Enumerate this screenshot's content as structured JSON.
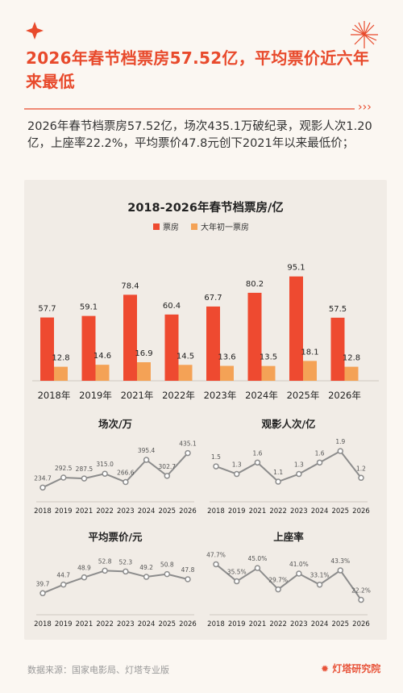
{
  "title": "2026年春节档票房57.52亿，平均票价近六年来最低",
  "summary": "2026年春节档票房57.52亿，场次435.1万破纪录，观影人次1.20亿，上座率22.2%，平均票价47.8元创下2021年以来最低价；",
  "footer": "数据来源：国家电影局、灯塔专业版",
  "brand": "灯塔研究院",
  "colors": {
    "accent": "#e84a2c",
    "bar_primary": "#ee4a30",
    "bar_secondary": "#f4a256",
    "line": "#8c8c8c"
  },
  "chart_data": [
    {
      "type": "bar",
      "title": "2018-2026年春节档票房/亿",
      "categories": [
        "2018年",
        "2019年",
        "2021年",
        "2022年",
        "2023年",
        "2024年",
        "2025年",
        "2026年"
      ],
      "series": [
        {
          "name": "票房",
          "values": [
            57.7,
            59.1,
            78.4,
            60.4,
            67.7,
            80.2,
            95.1,
            57.5
          ],
          "labels": [
            "57.7",
            "59.1",
            "78.4",
            "60.4",
            "67.7",
            "80.2",
            "95.1",
            "57.5"
          ]
        },
        {
          "name": "大年初一票房",
          "values": [
            12.8,
            14.6,
            16.9,
            14.5,
            13.6,
            13.5,
            18.1,
            12.8
          ],
          "labels": [
            "12.8",
            "14.6",
            "16.9",
            "14.5",
            "13.6",
            "13.5",
            "18.1",
            "12.8"
          ]
        }
      ]
    },
    {
      "type": "line",
      "title": "场次/万",
      "categories": [
        "2018",
        "2019",
        "2021",
        "2022",
        "2023",
        "2024",
        "2025",
        "2026"
      ],
      "values": [
        234.7,
        292.5,
        287.5,
        315.0,
        266.6,
        395.4,
        302.7,
        435.1
      ],
      "labels": [
        "234.7",
        "292.5",
        "287.5",
        "315.0",
        "266.6",
        "395.4",
        "302.7",
        "435.1"
      ]
    },
    {
      "type": "line",
      "title": "观影人次/亿",
      "categories": [
        "2018",
        "2019",
        "2021",
        "2022",
        "2023",
        "2024",
        "2025",
        "2026"
      ],
      "values": [
        1.5,
        1.3,
        1.6,
        1.1,
        1.3,
        1.6,
        1.9,
        1.2
      ],
      "labels": [
        "1.5",
        "1.3",
        "1.6",
        "1.1",
        "1.3",
        "1.6",
        "1.9",
        "1.2"
      ]
    },
    {
      "type": "line",
      "title": "平均票价/元",
      "categories": [
        "2018",
        "2019",
        "2021",
        "2022",
        "2023",
        "2024",
        "2025",
        "2026"
      ],
      "values": [
        39.7,
        44.7,
        48.9,
        52.8,
        52.3,
        49.2,
        50.8,
        47.8
      ],
      "labels": [
        "39.7",
        "44.7",
        "48.9",
        "52.8",
        "52.3",
        "49.2",
        "50.8",
        "47.8"
      ]
    },
    {
      "type": "line",
      "title": "上座率",
      "categories": [
        "2018",
        "2019",
        "2021",
        "2022",
        "2023",
        "2024",
        "2025",
        "2026"
      ],
      "values": [
        47.7,
        35.5,
        45.0,
        29.7,
        41.0,
        33.1,
        43.3,
        22.2
      ],
      "labels": [
        "47.7%",
        "35.5%",
        "45.0%",
        "29.7%",
        "41.0%",
        "33.1%",
        "43.3%",
        "22.2%"
      ]
    }
  ]
}
